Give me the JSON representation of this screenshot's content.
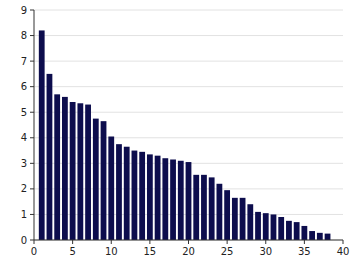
{
  "chart_data": {
    "type": "bar",
    "x": [
      1,
      2,
      3,
      4,
      5,
      6,
      7,
      8,
      9,
      10,
      11,
      12,
      13,
      14,
      15,
      16,
      17,
      18,
      19,
      20,
      21,
      22,
      23,
      24,
      25,
      26,
      27,
      28,
      29,
      30,
      31,
      32,
      33,
      34,
      35,
      36,
      37,
      38
    ],
    "values": [
      8.2,
      6.5,
      5.7,
      5.6,
      5.4,
      5.35,
      5.3,
      4.75,
      4.65,
      4.05,
      3.75,
      3.65,
      3.5,
      3.45,
      3.35,
      3.3,
      3.2,
      3.15,
      3.1,
      3.05,
      2.55,
      2.55,
      2.45,
      2.2,
      1.95,
      1.65,
      1.65,
      1.4,
      1.1,
      1.05,
      1.0,
      0.9,
      0.75,
      0.7,
      0.55,
      0.35,
      0.28,
      0.25
    ],
    "color": "#0d0d4d",
    "xlim": [
      0,
      40
    ],
    "ylim": [
      0,
      9
    ],
    "xticks": [
      0,
      5,
      10,
      15,
      20,
      25,
      30,
      35,
      40
    ],
    "yticks": [
      0,
      1,
      2,
      3,
      4,
      5,
      6,
      7,
      8,
      9
    ],
    "grid": true
  }
}
